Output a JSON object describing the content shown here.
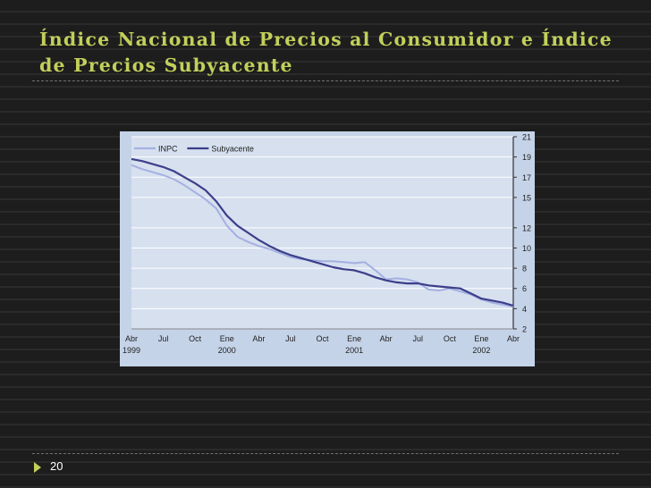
{
  "slide": {
    "title": "Índice Nacional de Precios al Consumidor e Índice de Precios Subyacente",
    "page_number": "20"
  },
  "colors": {
    "title": "#c2d05a",
    "chart_background": "#c5d3e8",
    "plot_background": "#d6e0ef",
    "inpc": "#a4b0e0",
    "subyacente": "#3c3e8a"
  },
  "chart_data": {
    "type": "line",
    "title": "",
    "xlabel": "",
    "ylabel": "",
    "ylim": [
      2,
      21
    ],
    "yticks": [
      2,
      4,
      6,
      8,
      10,
      12,
      15,
      17,
      19,
      21
    ],
    "y_axis_side": "right",
    "grid": true,
    "legend_position": "top-left",
    "x_ticks": [
      {
        "month": "Abr",
        "year": "1999"
      },
      {
        "month": "Jul",
        "year": ""
      },
      {
        "month": "Oct",
        "year": ""
      },
      {
        "month": "Ene",
        "year": "2000"
      },
      {
        "month": "Abr",
        "year": ""
      },
      {
        "month": "Jul",
        "year": ""
      },
      {
        "month": "Oct",
        "year": ""
      },
      {
        "month": "Ene",
        "year": "2001"
      },
      {
        "month": "Abr",
        "year": ""
      },
      {
        "month": "Jul",
        "year": ""
      },
      {
        "month": "Oct",
        "year": ""
      },
      {
        "month": "Ene",
        "year": "2002"
      },
      {
        "month": "Abr",
        "year": ""
      }
    ],
    "x": [
      "Abr 1999",
      "May 1999",
      "Jun 1999",
      "Jul 1999",
      "Ago 1999",
      "Sep 1999",
      "Oct 1999",
      "Nov 1999",
      "Dic 1999",
      "Ene 2000",
      "Feb 2000",
      "Mar 2000",
      "Abr 2000",
      "May 2000",
      "Jun 2000",
      "Jul 2000",
      "Ago 2000",
      "Sep 2000",
      "Oct 2000",
      "Nov 2000",
      "Dic 2000",
      "Ene 2001",
      "Feb 2001",
      "Mar 2001",
      "Abr 2001",
      "May 2001",
      "Jun 2001",
      "Jul 2001",
      "Ago 2001",
      "Sep 2001",
      "Oct 2001",
      "Nov 2001",
      "Dic 2001",
      "Ene 2002",
      "Feb 2002",
      "Mar 2002",
      "Abr 2002"
    ],
    "series": [
      {
        "name": "INPC",
        "color": "#a4b0e0",
        "values": [
          18.2,
          17.8,
          17.5,
          17.2,
          16.8,
          16.2,
          15.5,
          14.8,
          13.9,
          12.2,
          11.1,
          10.6,
          10.2,
          9.9,
          9.5,
          9.1,
          8.9,
          8.8,
          8.7,
          8.7,
          8.6,
          8.5,
          8.6,
          7.8,
          6.9,
          7.0,
          6.9,
          6.6,
          5.9,
          5.8,
          6.0,
          5.7,
          5.4,
          4.9,
          4.6,
          4.4,
          4.2
        ]
      },
      {
        "name": "Subyacente",
        "color": "#3c3e8a",
        "values": [
          18.8,
          18.6,
          18.3,
          18.0,
          17.6,
          17.0,
          16.4,
          15.7,
          14.6,
          13.2,
          12.2,
          11.5,
          10.8,
          10.2,
          9.7,
          9.3,
          9.0,
          8.7,
          8.4,
          8.1,
          7.9,
          7.8,
          7.5,
          7.1,
          6.8,
          6.6,
          6.5,
          6.5,
          6.3,
          6.2,
          6.1,
          6.0,
          5.5,
          5.0,
          4.8,
          4.6,
          4.3
        ]
      }
    ]
  }
}
